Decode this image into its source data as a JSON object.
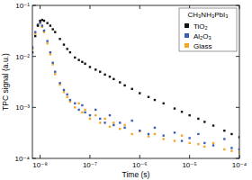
{
  "chart_data": {
    "type": "scatter",
    "x_label": "Time (s)",
    "y_label": "TPC signal (a.u.)",
    "legend_title": "CH₃NH₃PbI₃",
    "legend": "upper right",
    "log": true,
    "grid": false,
    "marker": "square",
    "xlim": [
      7e-09,
      0.0001
    ],
    "ylim": [
      0.0001,
      0.1
    ],
    "xticks": [
      {
        "value": 1e-08,
        "label": "10⁻⁸"
      },
      {
        "value": 1e-07,
        "label": "10⁻⁷"
      },
      {
        "value": 1e-06,
        "label": "10⁻⁶"
      },
      {
        "value": 1e-05,
        "label": "10⁻⁵"
      },
      {
        "value": 0.0001,
        "label": "10⁻⁴"
      }
    ],
    "yticks": [
      {
        "value": 0.0001,
        "label": "10⁻⁴"
      },
      {
        "value": 0.001,
        "label": "10⁻³"
      },
      {
        "value": 0.01,
        "label": "10⁻²"
      },
      {
        "value": 0.1,
        "label": "10⁻¹"
      }
    ],
    "x": [
      7e-09,
      8e-09,
      9e-09,
      1e-08,
      1.1e-08,
      1.2e-08,
      1.4e-08,
      1.6e-08,
      1.8e-08,
      2e-08,
      2.5e-08,
      3e-08,
      3.5e-08,
      4e-08,
      5e-08,
      6e-08,
      7e-08,
      8e-08,
      1e-07,
      1.3e-07,
      1.6e-07,
      2e-07,
      2.5e-07,
      3e-07,
      4e-07,
      5e-07,
      7e-07,
      1e-06,
      1.5e-06,
      2e-06,
      3e-06,
      5e-06,
      7e-06,
      1e-05,
      1.5e-05,
      2e-05,
      3e-05,
      5e-05,
      7e-05,
      0.0001
    ],
    "series": [
      {
        "name": "TiO₂",
        "color": "#111111",
        "values": [
          0.012,
          0.025,
          0.04,
          0.05,
          0.052,
          0.05,
          0.045,
          0.04,
          0.034,
          0.03,
          0.022,
          0.017,
          0.014,
          0.012,
          0.0095,
          0.0085,
          0.0078,
          0.0072,
          0.0062,
          0.0055,
          0.005,
          0.0044,
          0.004,
          0.0036,
          0.0031,
          0.0027,
          0.0023,
          0.0019,
          0.0016,
          0.0014,
          0.0012,
          0.00095,
          0.00082,
          0.0007,
          0.0006,
          0.00052,
          0.00044,
          0.00035,
          0.0003,
          0.00026
        ]
      },
      {
        "name": "Al₂O₃",
        "color": "#3b5eb5",
        "values": [
          0.015,
          0.03,
          0.042,
          0.046,
          0.04,
          0.032,
          0.02,
          0.012,
          0.0075,
          0.005,
          0.003,
          0.0022,
          0.0018,
          0.0014,
          0.0012,
          0.0009,
          0.0011,
          0.0008,
          0.0007,
          0.0009,
          0.0006,
          0.0005,
          0.0007,
          0.00045,
          0.0005,
          0.0004,
          0.00055,
          0.00035,
          0.0003,
          0.0004,
          0.00028,
          0.00032,
          0.00022,
          0.00025,
          0.0003,
          0.0002,
          0.00018,
          0.00024,
          0.00016,
          0.00015
        ]
      },
      {
        "name": "Glass",
        "color": "#f5a623",
        "values": [
          0.014,
          0.028,
          0.04,
          0.045,
          0.038,
          0.03,
          0.018,
          0.011,
          0.007,
          0.0045,
          0.0028,
          0.002,
          0.0016,
          0.0013,
          0.001,
          0.0012,
          0.0008,
          0.0009,
          0.0006,
          0.0007,
          0.0005,
          0.0006,
          0.00042,
          0.0005,
          0.00038,
          0.00045,
          0.0003,
          0.00034,
          0.00027,
          0.0003,
          0.00024,
          0.00022,
          0.00028,
          0.0002,
          0.00019,
          0.00017,
          0.0002,
          0.00015,
          0.00014,
          0.00013
        ]
      }
    ]
  }
}
